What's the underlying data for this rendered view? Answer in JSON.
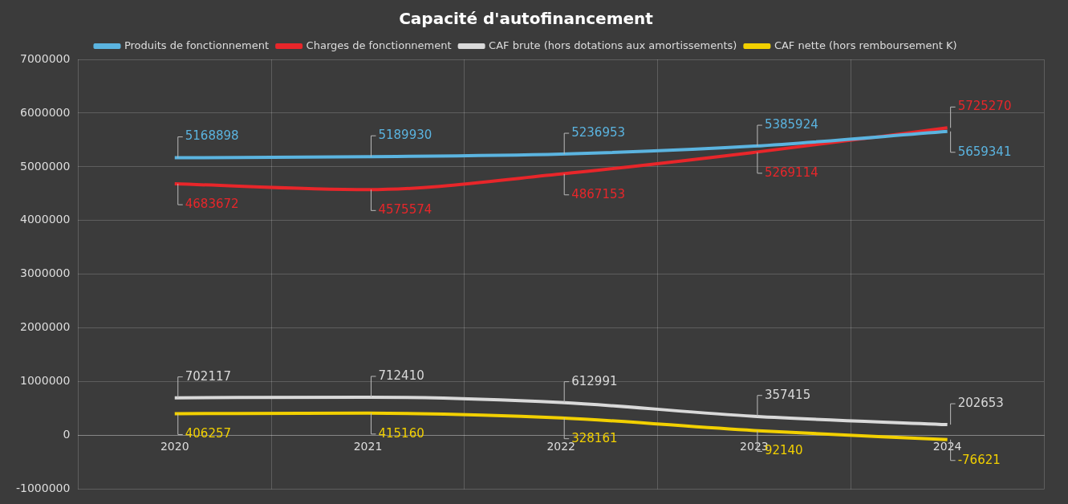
{
  "chart_data": {
    "type": "line",
    "title": "Capacité d'autofinancement",
    "categories": [
      "2020",
      "2021",
      "2022",
      "2023",
      "2024"
    ],
    "series": [
      {
        "name": "Produits de fonctionnement",
        "color": "#5bb4e0",
        "values": [
          5168898,
          5189930,
          5236953,
          5385924,
          5659341
        ]
      },
      {
        "name": "Charges de fonctionnement",
        "color": "#e8262a",
        "values": [
          4683672,
          4575574,
          4867153,
          5269114,
          5725270
        ]
      },
      {
        "name": "CAF brute (hors dotations aux amortissements)",
        "color": "#d9d9d9",
        "values": [
          702117,
          712410,
          612991,
          357415,
          202653
        ]
      },
      {
        "name": "CAF nette (hors remboursement K)",
        "color": "#f2d000",
        "values": [
          406257,
          415160,
          328161,
          92140,
          -76621
        ]
      }
    ],
    "ylim": [
      -1000000,
      7000000
    ],
    "yticks": [
      -1000000,
      0,
      1000000,
      2000000,
      3000000,
      4000000,
      5000000,
      6000000,
      7000000
    ],
    "grid": true,
    "legend": "top",
    "marker": "none",
    "line_style": "solid",
    "data_labels": true
  }
}
